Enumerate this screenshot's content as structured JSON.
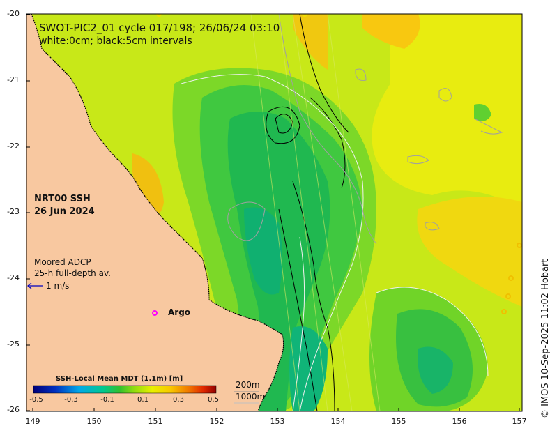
{
  "title_line1": "SWOT-PIC2_01 cycle 017/198; 26/06/24 03:10",
  "title_line2": "white:0cm; black:5cm intervals",
  "product_name": "NRT00 SSH",
  "product_date": "26 Jun 2024",
  "adcp_label_line1": "Moored ADCP",
  "adcp_label_line2": "25-h full-depth av.",
  "adcp_scale": "1 m/s",
  "argo_label": "Argo",
  "colorbar_title": "SSH-Local Mean MDT (1.1m) [m]",
  "colorbar_ticks": [
    "-0.5",
    "-0.3",
    "-0.1",
    "0.1",
    "0.3",
    "0.5"
  ],
  "colorbar_colors": [
    "#00008b",
    "#0040c0",
    "#00a0e0",
    "#00c8c0",
    "#10c060",
    "#60d020",
    "#c8e800",
    "#f8e000",
    "#f8b000",
    "#f07000",
    "#e03000",
    "#a00000"
  ],
  "depth_legend_1": "200m",
  "depth_legend_2": "1000m",
  "credit": "© IMOS 10-Sep-2025 11:02 Hobart",
  "x_ticks": [
    "149",
    "150",
    "151",
    "152",
    "153",
    "154",
    "155",
    "156",
    "157"
  ],
  "y_ticks": [
    "-20",
    "-21",
    "-22",
    "-23",
    "-24",
    "-25",
    "-26"
  ],
  "map_data": {
    "lon_range": [
      149,
      157
    ],
    "lat_range": [
      -26,
      -20
    ],
    "land_color": "#f8c8a0",
    "argo_color": "#ff00ff",
    "adcp_arrow_color": "#0000c0"
  }
}
